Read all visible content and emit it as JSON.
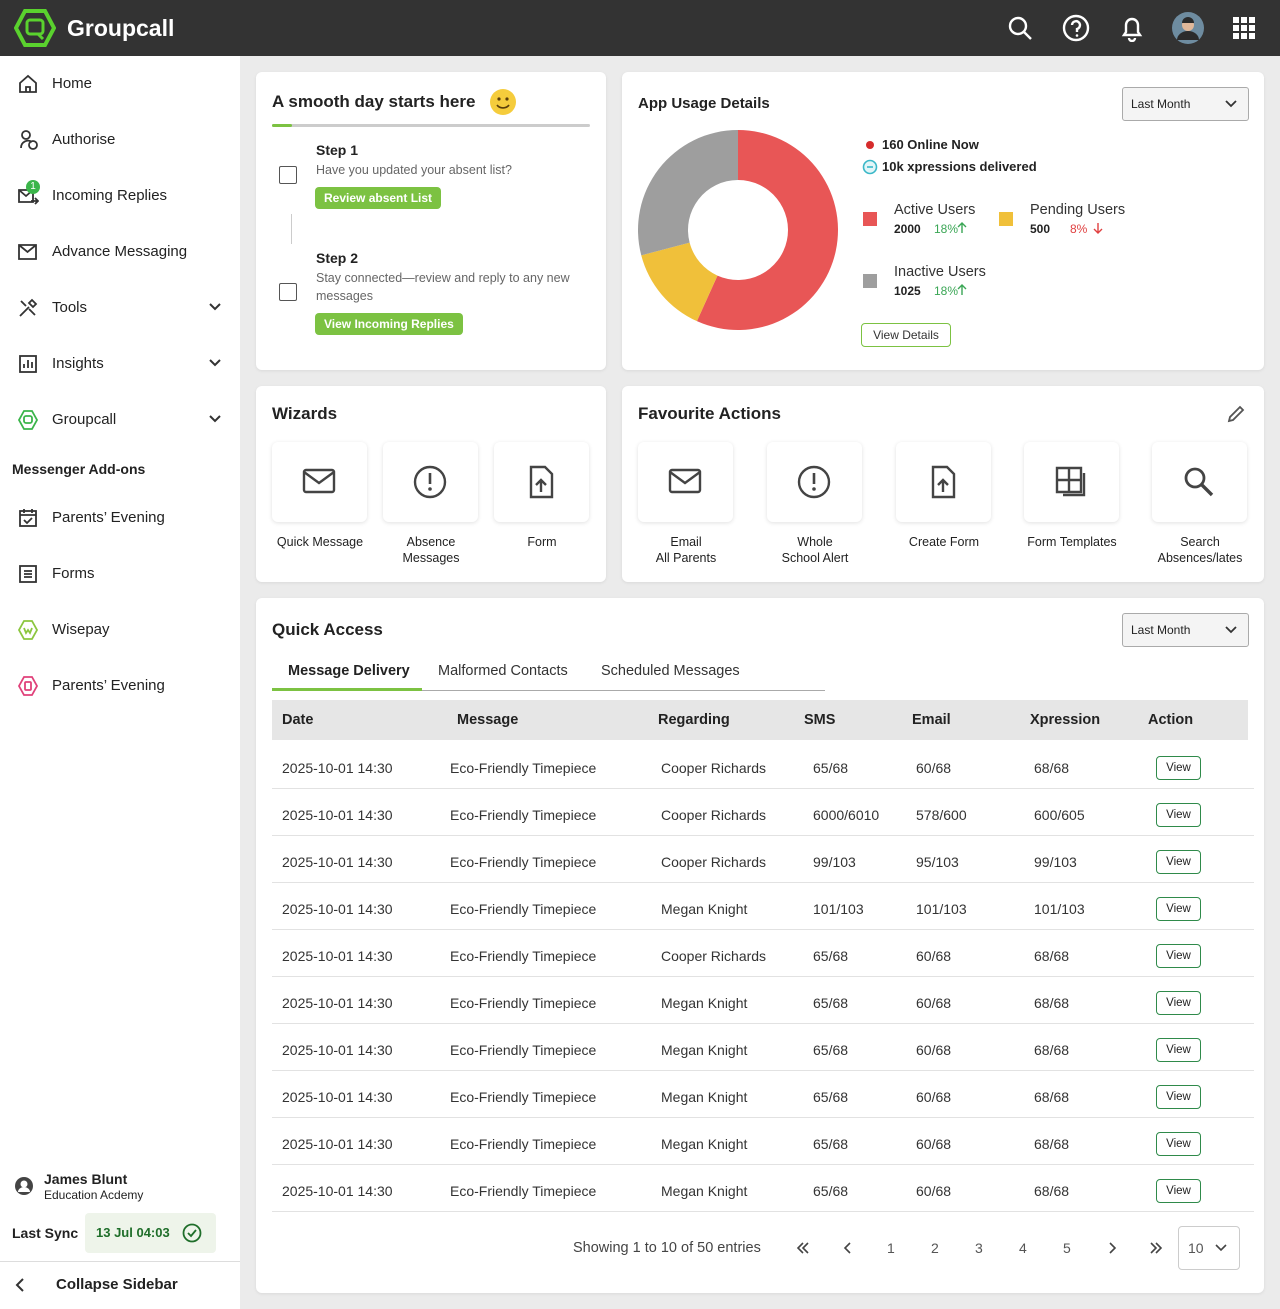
{
  "header": {
    "brand": "Groupcall"
  },
  "sidebar": {
    "items": [
      {
        "label": "Home"
      },
      {
        "label": "Authorise"
      },
      {
        "label": "Incoming Replies",
        "badge": 1
      },
      {
        "label": "Advance Messaging"
      },
      {
        "label": "Tools",
        "expandable": true
      },
      {
        "label": "Insights",
        "expandable": true
      },
      {
        "label": "Groupcall",
        "expandable": true
      }
    ],
    "addons_title": "Messenger Add-ons",
    "addons": [
      {
        "label": "Parents’ Evening"
      },
      {
        "label": "Forms"
      },
      {
        "label": "Wisepay"
      },
      {
        "label": "Parents’ Evening"
      }
    ],
    "user": {
      "name": "James Blunt",
      "org": "Education Acdemy"
    },
    "sync_label": "Last Sync",
    "sync_time": "13 Jul 04:03",
    "collapse": "Collapse Sidebar"
  },
  "onboarding": {
    "title": "A smooth day starts here",
    "steps": [
      {
        "title": "Step 1",
        "text": "Have you updated your absent list?",
        "button": "Review absent List"
      },
      {
        "title": "Step 2",
        "text": "Stay connected—review and reply to any new messages",
        "button": "View Incoming Replies"
      }
    ]
  },
  "app_usage": {
    "title": "App Usage Details",
    "period": "Last Month",
    "online": "160 Online Now",
    "delivered": "10k xpressions delivered",
    "segments": [
      {
        "name": "Active Users",
        "value": 2000,
        "change": "18%",
        "trend": "up",
        "color": "#e85656"
      },
      {
        "name": "Pending Users",
        "value": 500,
        "change": "8%",
        "trend": "down",
        "color": "#f0c03a"
      },
      {
        "name": "Inactive Users",
        "value": 1025,
        "change": "18%",
        "trend": "up",
        "color": "#9e9e9e"
      }
    ],
    "button": "View Details"
  },
  "wizards": {
    "title": "Wizards",
    "items": [
      "Quick Message",
      "Absence\nMessages",
      "Form"
    ]
  },
  "favourites": {
    "title": "Favourite Actions",
    "items": [
      "Email\nAll Parents",
      "Whole\nSchool Alert",
      "Create Form",
      "Form Templates",
      "Search\nAbsences/lates"
    ]
  },
  "quick_access": {
    "title": "Quick Access",
    "period": "Last Month",
    "tabs": [
      "Message Delivery",
      "Malformed Contacts",
      "Scheduled Messages"
    ],
    "active_tab": 0,
    "table": {
      "columns": [
        "Date",
        "Message",
        "Regarding",
        "SMS",
        "Email",
        "Xpression",
        "Action"
      ],
      "action_label": "View",
      "rows": [
        [
          "2025-10-01 14:30",
          "Eco-Friendly Timepiece",
          "Cooper Richards",
          "65/68",
          "60/68",
          "68/68"
        ],
        [
          "2025-10-01 14:30",
          "Eco-Friendly Timepiece",
          "Cooper Richards",
          "6000/6010",
          "578/600",
          "600/605"
        ],
        [
          "2025-10-01 14:30",
          "Eco-Friendly Timepiece",
          "Cooper Richards",
          "99/103",
          "95/103",
          "99/103"
        ],
        [
          "2025-10-01 14:30",
          "Eco-Friendly Timepiece",
          "Megan Knight",
          "101/103",
          "101/103",
          "101/103"
        ],
        [
          "2025-10-01 14:30",
          "Eco-Friendly Timepiece",
          "Cooper Richards",
          "65/68",
          "60/68",
          "68/68"
        ],
        [
          "2025-10-01 14:30",
          "Eco-Friendly Timepiece",
          "Megan Knight",
          "65/68",
          "60/68",
          "68/68"
        ],
        [
          "2025-10-01 14:30",
          "Eco-Friendly Timepiece",
          "Megan Knight",
          "65/68",
          "60/68",
          "68/68"
        ],
        [
          "2025-10-01 14:30",
          "Eco-Friendly Timepiece",
          "Megan Knight",
          "65/68",
          "60/68",
          "68/68"
        ],
        [
          "2025-10-01 14:30",
          "Eco-Friendly Timepiece",
          "Megan Knight",
          "65/68",
          "60/68",
          "68/68"
        ],
        [
          "2025-10-01 14:30",
          "Eco-Friendly Timepiece",
          "Megan Knight",
          "65/68",
          "60/68",
          "68/68"
        ]
      ]
    },
    "pagination": {
      "summary": "Showing 1 to 10 of 50 entries",
      "pages": [
        1,
        2,
        3,
        4,
        5
      ],
      "page_size": 10
    }
  }
}
